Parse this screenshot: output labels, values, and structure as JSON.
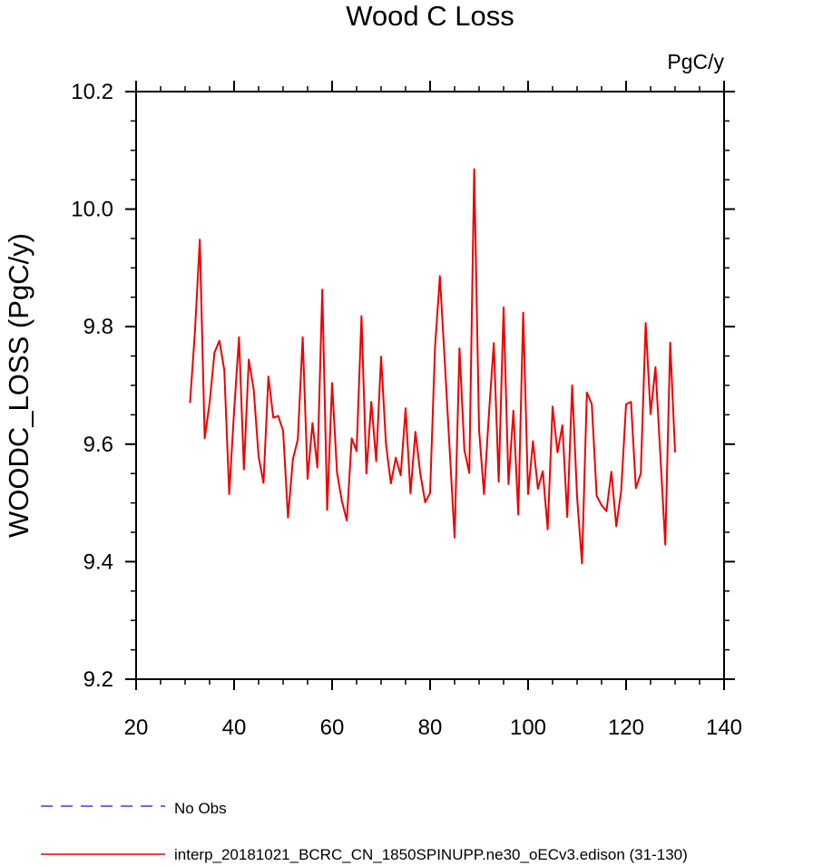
{
  "chart_data": {
    "type": "line",
    "title": "Wood C Loss",
    "units": "PgC/y",
    "xlabel": "",
    "ylabel": "WOODC_LOSS  (PgC/y)",
    "xlim": [
      20,
      140
    ],
    "ylim": [
      9.2,
      10.2
    ],
    "xticks": [
      20,
      40,
      60,
      80,
      100,
      120,
      140
    ],
    "xtick_labels": [
      "20",
      "40",
      "60",
      "80",
      "100",
      "120",
      "140"
    ],
    "yticks": [
      9.2,
      9.4,
      9.6,
      9.8,
      10.0,
      10.2
    ],
    "ytick_labels": [
      "9.2",
      "9.4",
      "9.6",
      "9.8",
      "10.0",
      "10.2"
    ],
    "legend": [
      {
        "label": "No Obs",
        "color": "#3a3aff",
        "style": "dashed"
      },
      {
        "label": "interp_20181021_BCRC_CN_1850SPINUPP.ne30_oECv3.edison (31-130)",
        "color": "#ee0000",
        "style": "solid"
      }
    ],
    "series": [
      {
        "name": "interp_20181021_BCRC_CN_1850SPINUPP.ne30_oECv3.edison (31-130)",
        "color": "#ee0000",
        "x": [
          31,
          32,
          33,
          34,
          35,
          36,
          37,
          38,
          39,
          40,
          41,
          42,
          43,
          44,
          45,
          46,
          47,
          48,
          49,
          50,
          51,
          52,
          53,
          54,
          55,
          56,
          57,
          58,
          59,
          60,
          61,
          62,
          63,
          64,
          65,
          66,
          67,
          68,
          69,
          70,
          71,
          72,
          73,
          74,
          75,
          76,
          77,
          78,
          79,
          80,
          81,
          82,
          83,
          84,
          85,
          86,
          87,
          88,
          89,
          90,
          91,
          92,
          93,
          94,
          95,
          96,
          97,
          98,
          99,
          100,
          101,
          102,
          103,
          104,
          105,
          106,
          107,
          108,
          109,
          110,
          111,
          112,
          113,
          114,
          115,
          116,
          117,
          118,
          119,
          120,
          121,
          122,
          123,
          124,
          125,
          126,
          127,
          128,
          129,
          130
        ],
        "values": [
          9.67,
          9.79,
          9.948,
          9.61,
          9.67,
          9.756,
          9.776,
          9.726,
          9.515,
          9.656,
          9.782,
          9.557,
          9.744,
          9.693,
          9.579,
          9.534,
          9.715,
          9.645,
          9.648,
          9.623,
          9.475,
          9.574,
          9.608,
          9.782,
          9.541,
          9.636,
          9.56,
          9.863,
          9.488,
          9.704,
          9.552,
          9.503,
          9.47,
          9.61,
          9.588,
          9.818,
          9.55,
          9.672,
          9.571,
          9.749,
          9.6,
          9.533,
          9.577,
          9.547,
          9.661,
          9.516,
          9.621,
          9.55,
          9.501,
          9.517,
          9.764,
          9.886,
          9.74,
          9.59,
          9.441,
          9.763,
          9.59,
          9.551,
          10.068,
          9.624,
          9.515,
          9.65,
          9.772,
          9.536,
          9.833,
          9.532,
          9.657,
          9.48,
          9.824,
          9.515,
          9.605,
          9.524,
          9.554,
          9.455,
          9.664,
          9.586,
          9.632,
          9.476,
          9.7,
          9.51,
          9.397,
          9.688,
          9.668,
          9.512,
          9.496,
          9.486,
          9.553,
          9.46,
          9.521,
          9.668,
          9.672,
          9.525,
          9.55,
          9.806,
          9.651,
          9.731,
          9.58,
          9.429,
          9.773,
          9.586
        ]
      }
    ]
  }
}
